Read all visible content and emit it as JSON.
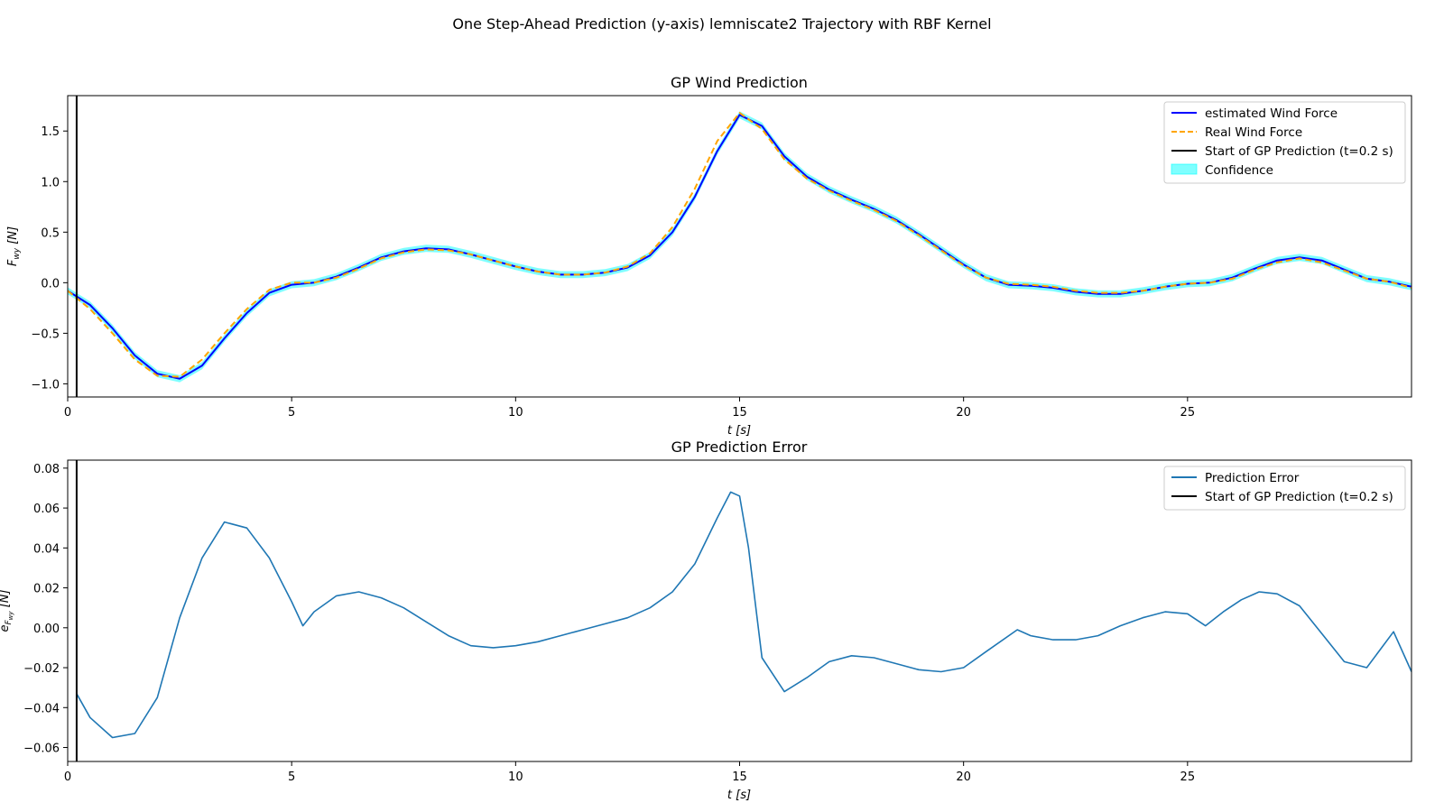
{
  "suptitle": "One Step-Ahead Prediction (y-axis) lemniscate2 Trajectory with RBF Kernel",
  "chart_data": [
    {
      "type": "line",
      "title": "GP Wind Prediction",
      "xlabel": "t [s]",
      "ylabel": "F_wy [N]",
      "xlim": [
        0,
        30
      ],
      "ylim": [
        -1.13,
        1.85
      ],
      "xticks": [
        0,
        5,
        10,
        15,
        20,
        25
      ],
      "yticks": [
        -1.0,
        -0.5,
        0.0,
        0.5,
        1.0,
        1.5
      ],
      "start_line_x": 0.2,
      "legend_position": "upper right",
      "legend": [
        "estimated Wind Force",
        "Real Wind Force",
        "Start of GP Prediction (t=0.2 s)",
        "Confidence"
      ],
      "series": [
        {
          "name": "estimated Wind Force",
          "color": "#0000ff",
          "x": [
            0,
            0.5,
            1,
            1.5,
            2,
            2.5,
            3,
            3.5,
            4,
            4.5,
            5,
            5.5,
            6,
            6.5,
            7,
            7.5,
            8,
            8.5,
            9,
            9.5,
            10,
            10.5,
            11,
            11.5,
            12,
            12.5,
            13,
            13.5,
            14,
            14.5,
            15,
            15.5,
            16,
            16.5,
            17,
            17.5,
            18,
            18.5,
            19,
            19.5,
            20,
            20.5,
            21,
            21.5,
            22,
            22.5,
            23,
            23.5,
            24,
            24.5,
            25,
            25.5,
            26,
            26.5,
            27,
            27.5,
            28,
            28.5,
            29,
            29.5,
            30
          ],
          "y": [
            -0.08,
            -0.22,
            -0.45,
            -0.72,
            -0.9,
            -0.95,
            -0.82,
            -0.55,
            -0.3,
            -0.1,
            -0.02,
            0.0,
            0.06,
            0.15,
            0.25,
            0.31,
            0.34,
            0.33,
            0.28,
            0.22,
            0.16,
            0.11,
            0.08,
            0.08,
            0.1,
            0.15,
            0.27,
            0.5,
            0.85,
            1.3,
            1.66,
            1.55,
            1.25,
            1.05,
            0.92,
            0.82,
            0.73,
            0.62,
            0.48,
            0.33,
            0.18,
            0.05,
            -0.02,
            -0.03,
            -0.05,
            -0.09,
            -0.11,
            -0.11,
            -0.08,
            -0.04,
            -0.01,
            0.0,
            0.05,
            0.14,
            0.22,
            0.25,
            0.22,
            0.13,
            0.04,
            0.01,
            -0.04
          ]
        },
        {
          "name": "Real Wind Force",
          "color": "#ffa500",
          "x": [
            0,
            0.5,
            1,
            1.5,
            2,
            2.5,
            3,
            3.5,
            4,
            4.5,
            5,
            5.5,
            6,
            6.5,
            7,
            7.5,
            8,
            8.5,
            9,
            9.5,
            10,
            10.5,
            11,
            11.5,
            12,
            12.5,
            13,
            13.5,
            14,
            14.5,
            15,
            15.5,
            16,
            16.5,
            17,
            17.5,
            18,
            18.5,
            19,
            19.5,
            20,
            20.5,
            21,
            21.5,
            22,
            22.5,
            23,
            23.5,
            24,
            24.5,
            25,
            25.5,
            26,
            26.5,
            27,
            27.5,
            28,
            28.5,
            29,
            29.5,
            30
          ],
          "y": [
            -0.08,
            -0.26,
            -0.5,
            -0.76,
            -0.92,
            -0.93,
            -0.76,
            -0.5,
            -0.26,
            -0.07,
            0.0,
            0.0,
            0.05,
            0.14,
            0.24,
            0.3,
            0.33,
            0.32,
            0.28,
            0.22,
            0.16,
            0.11,
            0.08,
            0.08,
            0.1,
            0.16,
            0.29,
            0.55,
            0.93,
            1.4,
            1.68,
            1.52,
            1.22,
            1.03,
            0.91,
            0.81,
            0.72,
            0.61,
            0.47,
            0.32,
            0.17,
            0.05,
            -0.01,
            -0.02,
            -0.04,
            -0.08,
            -0.1,
            -0.1,
            -0.08,
            -0.04,
            -0.01,
            0.0,
            0.04,
            0.13,
            0.2,
            0.24,
            0.2,
            0.12,
            0.04,
            0.01,
            -0.05
          ]
        }
      ],
      "confidence_band": {
        "name": "Confidence",
        "color": "#00ffff",
        "alpha": 0.5,
        "halfwidth": 0.035
      }
    },
    {
      "type": "line",
      "title": "GP Prediction Error",
      "xlabel": "t [s]",
      "ylabel": "e_F_wy [N]",
      "xlim": [
        0,
        30
      ],
      "ylim": [
        -0.067,
        0.084
      ],
      "xticks": [
        0,
        5,
        10,
        15,
        20,
        25
      ],
      "yticks": [
        -0.06,
        -0.04,
        -0.02,
        0.0,
        0.02,
        0.04,
        0.06,
        0.08
      ],
      "start_line_x": 0.2,
      "legend_position": "upper right",
      "legend": [
        "Prediction Error",
        "Start of GP Prediction (t=0.2 s)"
      ],
      "series": [
        {
          "name": "Prediction Error",
          "color": "#1f77b4",
          "x": [
            0.2,
            0.5,
            1.0,
            1.5,
            2.0,
            2.5,
            3.0,
            3.5,
            4.0,
            4.5,
            5.0,
            5.25,
            5.5,
            6.0,
            6.5,
            7.0,
            7.5,
            8.0,
            8.5,
            9.0,
            9.5,
            10.0,
            10.5,
            11.0,
            11.5,
            12.0,
            12.5,
            13.0,
            13.5,
            14.0,
            14.5,
            14.8,
            15.0,
            15.2,
            15.5,
            16.0,
            16.5,
            17.0,
            17.5,
            18.0,
            18.5,
            19.0,
            19.5,
            20.0,
            20.5,
            21.2,
            21.5,
            22.0,
            22.5,
            23.0,
            23.5,
            24.0,
            24.5,
            25.0,
            25.4,
            25.8,
            26.2,
            26.6,
            27.0,
            27.5,
            28.0,
            28.5,
            29.0,
            29.6,
            30.0
          ],
          "y": [
            -0.033,
            -0.045,
            -0.055,
            -0.053,
            -0.035,
            0.005,
            0.035,
            0.053,
            0.05,
            0.035,
            0.013,
            0.001,
            0.008,
            0.016,
            0.018,
            0.015,
            0.01,
            0.003,
            -0.004,
            -0.009,
            -0.01,
            -0.009,
            -0.007,
            -0.004,
            -0.001,
            0.002,
            0.005,
            0.01,
            0.018,
            0.032,
            0.055,
            0.068,
            0.066,
            0.04,
            -0.015,
            -0.032,
            -0.025,
            -0.017,
            -0.014,
            -0.015,
            -0.018,
            -0.021,
            -0.022,
            -0.02,
            -0.012,
            -0.001,
            -0.004,
            -0.006,
            -0.006,
            -0.004,
            0.001,
            0.005,
            0.008,
            0.007,
            0.001,
            0.008,
            0.014,
            0.018,
            0.017,
            0.011,
            -0.003,
            -0.017,
            -0.02,
            -0.002,
            -0.022
          ]
        }
      ]
    }
  ]
}
